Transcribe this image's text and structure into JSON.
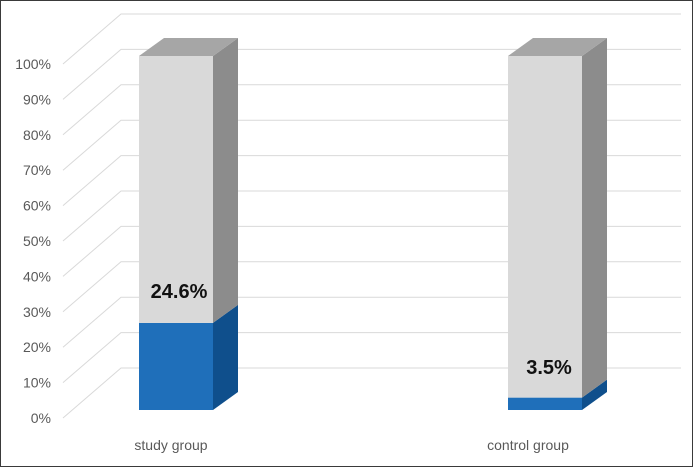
{
  "chart_data": {
    "type": "bar",
    "stacked": true,
    "three_d": true,
    "percent_stacked": true,
    "categories": [
      "study group",
      "control group"
    ],
    "series": [
      {
        "values": [
          24.6,
          3.5
        ],
        "color": "#1f6fba",
        "side_color": "#0f4f8c",
        "top_color": "#1f6fba"
      },
      {
        "values": [
          75.4,
          96.5
        ],
        "color": "#d9d9d9",
        "side_color": "#8c8c8c",
        "top_color": "#a6a6a6"
      }
    ],
    "data_labels": [
      "24.6%",
      "3.5%"
    ],
    "yticks": [
      "0%",
      "10%",
      "20%",
      "30%",
      "40%",
      "50%",
      "60%",
      "70%",
      "80%",
      "90%",
      "100%"
    ],
    "ylim": [
      0,
      100
    ],
    "grid": true,
    "title": "",
    "xlabel": "",
    "ylabel": ""
  }
}
